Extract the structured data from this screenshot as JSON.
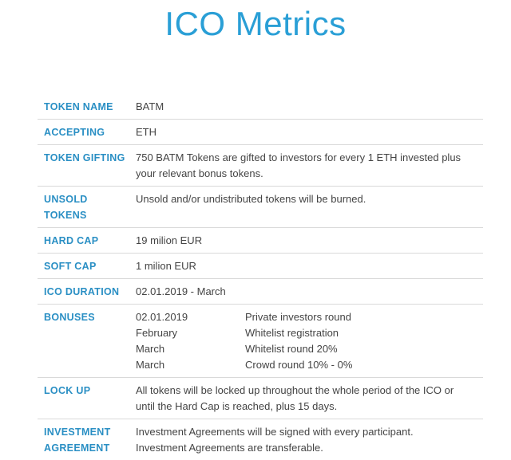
{
  "title": "ICO Metrics",
  "rows": {
    "token_name": {
      "label": "TOKEN NAME",
      "value": "BATM"
    },
    "accepting": {
      "label": "ACCEPTING",
      "value": "ETH"
    },
    "token_gifting": {
      "label": "TOKEN GIFTING",
      "line1": "750 BATM Tokens are gifted to investors for every 1 ETH invested plus",
      "line2": "your relevant bonus tokens."
    },
    "unsold_tokens": {
      "label_line1": "UNSOLD",
      "label_line2": "TOKENS",
      "value": "Unsold and/or undistributed tokens will be burned."
    },
    "hard_cap": {
      "label": "HARD CAP",
      "value": "19 milion EUR"
    },
    "soft_cap": {
      "label": "SOFT CAP",
      "value": "1 milion EUR"
    },
    "ico_duration": {
      "label": "ICO DURATION",
      "value": "02.01.2019 - March"
    },
    "bonuses": {
      "label": "BONUSES",
      "items": [
        {
          "date": "02.01.2019",
          "desc": "Private investors round"
        },
        {
          "date": "February",
          "desc": "Whitelist registration"
        },
        {
          "date": "March",
          "desc": "Whitelist round 20%"
        },
        {
          "date": "March",
          "desc": "Crowd round 10% - 0%"
        }
      ]
    },
    "lock_up": {
      "label": "LOCK UP",
      "line1": "All tokens will be locked up throughout the whole period of the ICO or",
      "line2": "until the Hard Cap is reached, plus 15 days."
    },
    "investment_agreement": {
      "label_line1": "INVESTMENT",
      "label_line2": "AGREEMENT",
      "line1": "Investment Agreements will be signed with every participant.",
      "line2": "Investment Agreements are transferable."
    }
  },
  "colors": {
    "title": "#2a9fd6",
    "label": "#2a8fc4",
    "divider": "#d9d9d9"
  }
}
